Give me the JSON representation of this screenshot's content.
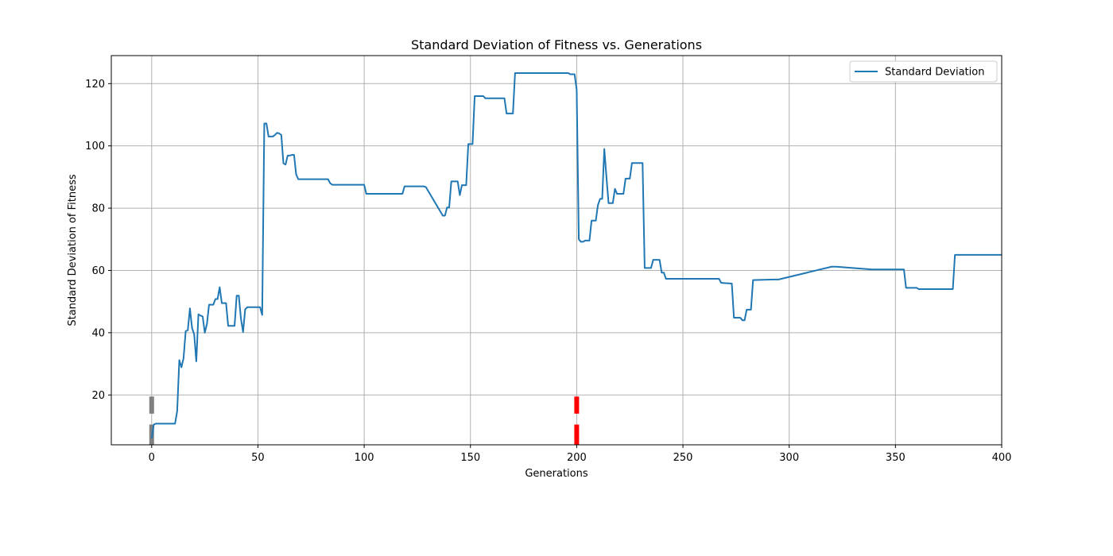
{
  "colors": {
    "line": "#1f77b4",
    "grid": "#b0b0b0",
    "marker_gray": "#808080",
    "marker_red": "#ff0000"
  },
  "chart_data": {
    "type": "line",
    "title": "Standard Deviation of Fitness vs. Generations",
    "xlabel": "Generations",
    "ylabel": "Standard Deviation of Fitness",
    "xlim": [
      -19,
      400
    ],
    "ylim": [
      4,
      129
    ],
    "xticks": [
      0,
      50,
      100,
      150,
      200,
      250,
      300,
      350,
      400
    ],
    "yticks": [
      20,
      40,
      60,
      80,
      100,
      120
    ],
    "xtick_labels": [
      "0",
      "50",
      "100",
      "150",
      "200",
      "250",
      "300",
      "350",
      "400"
    ],
    "ytick_labels": [
      "20",
      "40",
      "60",
      "80",
      "100",
      "120"
    ],
    "grid": true,
    "legend": {
      "position": "top-right",
      "entries": [
        "Standard Deviation"
      ]
    },
    "series": [
      {
        "name": "Standard Deviation",
        "x": [
          0,
          1,
          2,
          11,
          12,
          13,
          14,
          15,
          16,
          17,
          18,
          19,
          20,
          21,
          22,
          23,
          24,
          25,
          26,
          27,
          28,
          29,
          30,
          31,
          32,
          33,
          34,
          35,
          36,
          37,
          38,
          39,
          40,
          41,
          42,
          43,
          44,
          45,
          46,
          47,
          48,
          49,
          50,
          51,
          52,
          53,
          54,
          55,
          56,
          57,
          58,
          59,
          60,
          61,
          62,
          63,
          64,
          65,
          66,
          67,
          68,
          69,
          70,
          80,
          83,
          84,
          85,
          99,
          100,
          101,
          117,
          118,
          119,
          126,
          127,
          128,
          129,
          137,
          138,
          139,
          140,
          141,
          142,
          143,
          144,
          145,
          146,
          147,
          148,
          149,
          150,
          151,
          152,
          153,
          154,
          155,
          156,
          157,
          165,
          166,
          167,
          168,
          169,
          170,
          171,
          196,
          197,
          198,
          199,
          200,
          201,
          202,
          203,
          204,
          205,
          206,
          207,
          208,
          209,
          210,
          211,
          212,
          213,
          214,
          215,
          216,
          217,
          218,
          219,
          220,
          221,
          222,
          223,
          224,
          225,
          226,
          227,
          228,
          229,
          230,
          231,
          232,
          233,
          234,
          235,
          236,
          237,
          238,
          239,
          240,
          241,
          242,
          266,
          267,
          268,
          273,
          274,
          275,
          276,
          277,
          278,
          279,
          280,
          281,
          282,
          283,
          293,
          294,
          295,
          320,
          321,
          322,
          339,
          340,
          341,
          354,
          355,
          356,
          360,
          361,
          377,
          378,
          379,
          400
        ],
        "values": [
          6.0,
          10.5,
          10.8,
          10.8,
          14.8,
          31.2,
          28.9,
          31.8,
          40.5,
          40.8,
          47.8,
          41.5,
          39.5,
          30.8,
          45.9,
          45.5,
          45.2,
          40.0,
          42.8,
          49.0,
          49.0,
          49.0,
          50.8,
          50.8,
          54.6,
          49.5,
          49.5,
          49.5,
          42.2,
          42.2,
          42.2,
          42.2,
          51.9,
          51.9,
          44.6,
          40.2,
          47.5,
          48.2,
          48.2,
          48.2,
          48.2,
          48.2,
          48.2,
          48.2,
          45.7,
          107.2,
          107.2,
          103.0,
          103.0,
          103.0,
          103.5,
          104.2,
          104.0,
          103.5,
          94.4,
          94.0,
          96.9,
          96.9,
          97.1,
          97.1,
          90.8,
          89.3,
          89.3,
          89.3,
          89.3,
          88.0,
          87.5,
          87.5,
          87.5,
          84.6,
          84.6,
          84.6,
          87.0,
          87.0,
          87.0,
          87.0,
          86.8,
          77.6,
          77.6,
          80.2,
          80.2,
          88.6,
          88.6,
          88.6,
          88.6,
          84.2,
          87.4,
          87.4,
          87.4,
          100.6,
          100.6,
          100.6,
          116.0,
          116.0,
          116.0,
          116.0,
          116.0,
          115.3,
          115.3,
          115.3,
          110.4,
          110.4,
          110.4,
          110.4,
          123.4,
          123.4,
          123.0,
          123.0,
          123.0,
          118.0,
          70.0,
          69.2,
          69.2,
          69.6,
          69.6,
          69.6,
          76.0,
          76.0,
          76.0,
          81.0,
          83.0,
          83.0,
          99.0,
          90.0,
          81.6,
          81.6,
          81.6,
          86.2,
          84.6,
          84.6,
          84.6,
          84.6,
          89.5,
          89.5,
          89.5,
          94.5,
          94.5,
          94.5,
          94.5,
          94.5,
          94.5,
          60.8,
          60.8,
          60.8,
          60.8,
          63.4,
          63.4,
          63.4,
          63.4,
          59.3,
          59.3,
          57.3,
          57.3,
          57.3,
          56.0,
          55.8,
          44.8,
          44.8,
          44.8,
          44.8,
          44.0,
          44.0,
          47.4,
          47.4,
          47.4,
          56.9,
          57.1,
          57.1,
          57.1,
          61.2,
          61.2,
          61.2,
          60.3,
          60.3,
          60.3,
          60.3,
          54.4,
          54.4,
          54.4,
          54.0,
          54.0,
          65.0,
          65.0,
          65.0
        ]
      }
    ],
    "markers": [
      {
        "x": 0,
        "segments": [
          [
            4,
            10.5
          ],
          [
            14,
            19.5
          ]
        ],
        "color": "#808080"
      },
      {
        "x": 200,
        "segments": [
          [
            4,
            10.5
          ],
          [
            14,
            19.5
          ]
        ],
        "color": "#ff0000"
      }
    ]
  }
}
